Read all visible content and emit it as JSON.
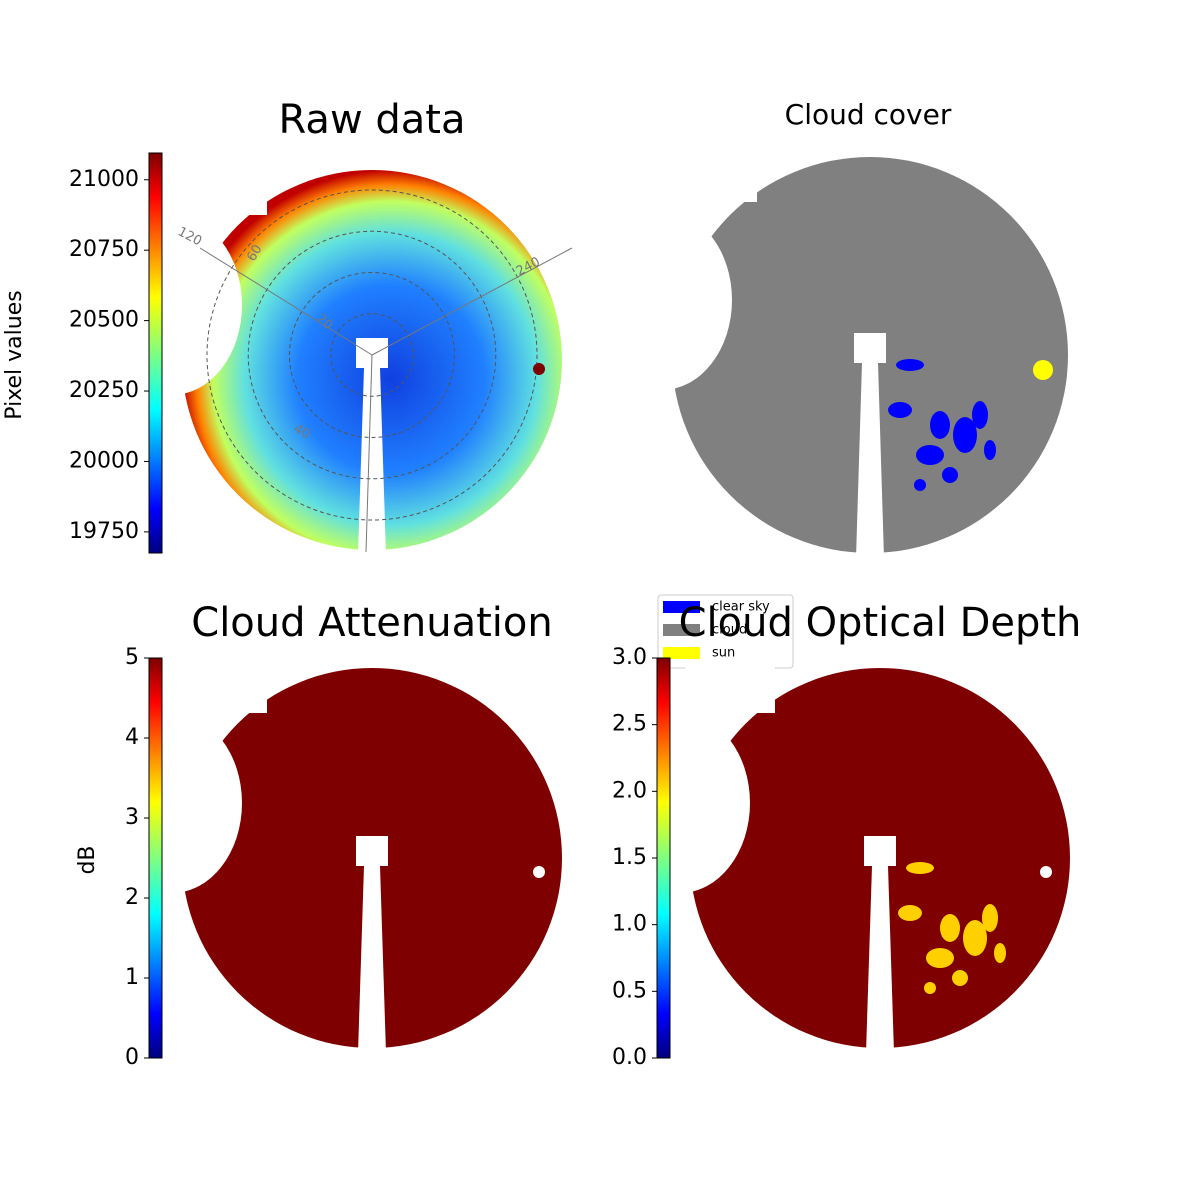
{
  "chart_data": [
    {
      "type": "image",
      "title": "Raw data",
      "colorbar_label": "Pixel values",
      "colormap": "jet",
      "ylim": [
        19675,
        21095
      ],
      "yticks": [
        19750,
        20000,
        20250,
        20500,
        20750,
        21000
      ],
      "annotations": [
        "120",
        "240",
        "60",
        "20",
        "40"
      ]
    },
    {
      "type": "image",
      "title": "Cloud cover",
      "legend": [
        {
          "name": "clear sky",
          "color": "#0000ff"
        },
        {
          "name": "cloud",
          "color": "#808080"
        },
        {
          "name": "sun",
          "color": "#ffff00"
        }
      ]
    },
    {
      "type": "image",
      "title": "Cloud Attenuation",
      "colorbar_label": "dB",
      "colormap": "jet",
      "ylim": [
        0,
        5
      ],
      "yticks": [
        0,
        1,
        2,
        3,
        4,
        5
      ]
    },
    {
      "type": "image",
      "title": "Cloud Optical Depth",
      "colormap": "jet",
      "ylim": [
        0,
        3
      ],
      "yticks": [
        {
          "value": 0,
          "label": "0.0"
        },
        {
          "value": 0.5,
          "label": "0.5"
        },
        {
          "value": 1,
          "label": "1.0"
        },
        {
          "value": 1.5,
          "label": "1.5"
        },
        {
          "value": 2,
          "label": "2.0"
        },
        {
          "value": 2.5,
          "label": "2.5"
        },
        {
          "value": 3,
          "label": "3.0"
        }
      ]
    }
  ]
}
